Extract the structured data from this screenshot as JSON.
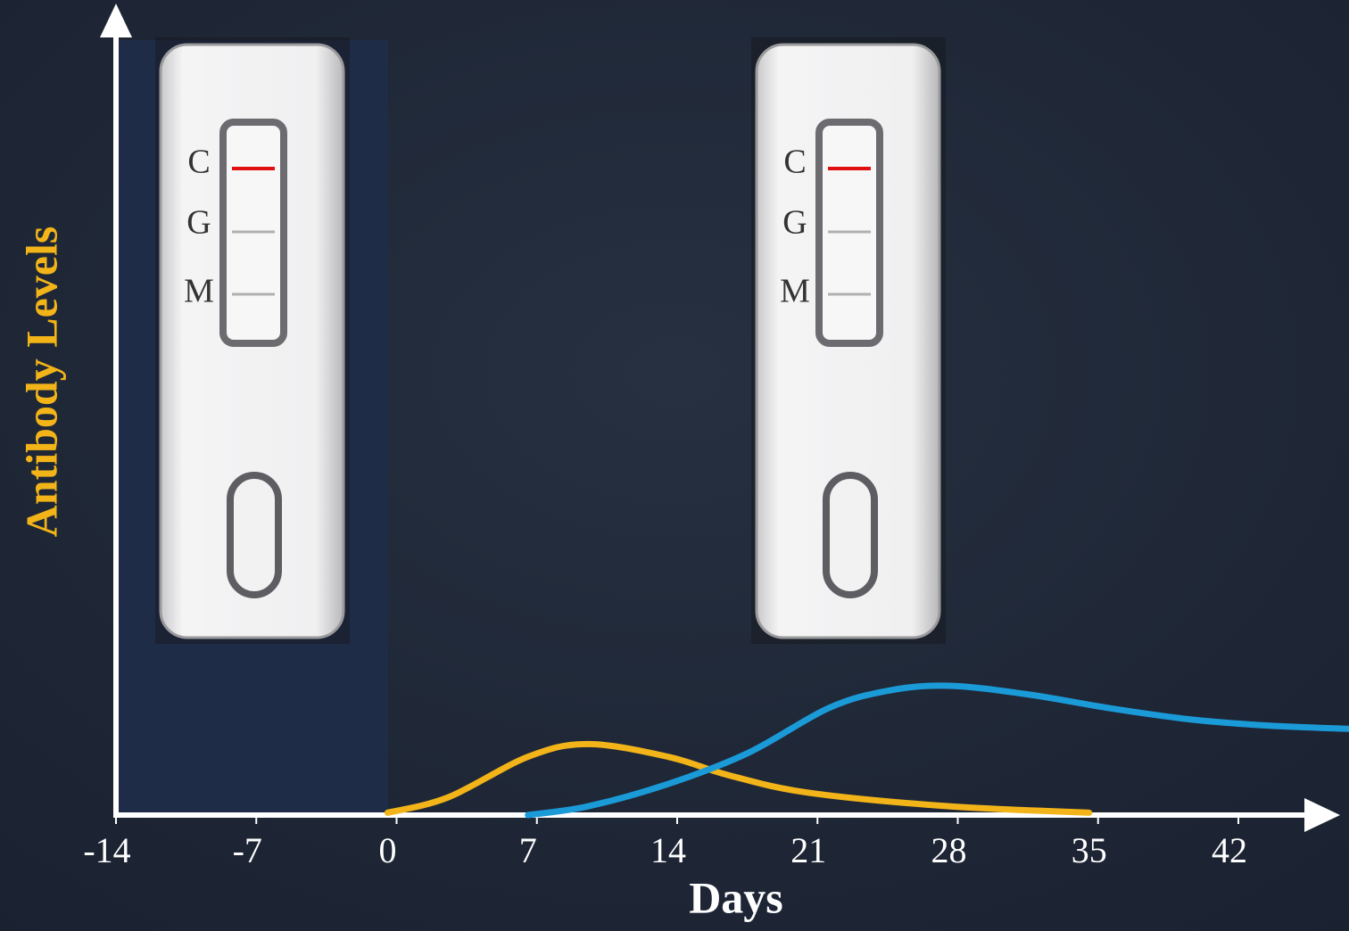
{
  "chart_data": {
    "type": "line",
    "x_label": "Days",
    "y_label": "Antibody Levels",
    "xlim": [
      -14,
      48
    ],
    "xticks": [
      -14,
      -7,
      0,
      7,
      14,
      21,
      28,
      35,
      42
    ],
    "ylim": [
      0,
      10
    ],
    "cassette_labels": [
      "C",
      "G",
      "M"
    ],
    "series": [
      {
        "color": "#f2b418",
        "x": [
          0,
          3,
          7,
          10,
          14,
          17,
          21,
          28,
          35
        ],
        "values": [
          0.03,
          0.22,
          0.73,
          0.89,
          0.73,
          0.5,
          0.28,
          0.11,
          0.03
        ]
      },
      {
        "color": "#1b9ad8",
        "x": [
          7,
          10,
          14,
          18,
          22,
          25,
          28,
          32,
          36,
          40,
          44,
          48
        ],
        "values": [
          0,
          0.11,
          0.39,
          0.78,
          1.34,
          1.56,
          1.62,
          1.51,
          1.34,
          1.2,
          1.12,
          1.08
        ]
      }
    ]
  }
}
